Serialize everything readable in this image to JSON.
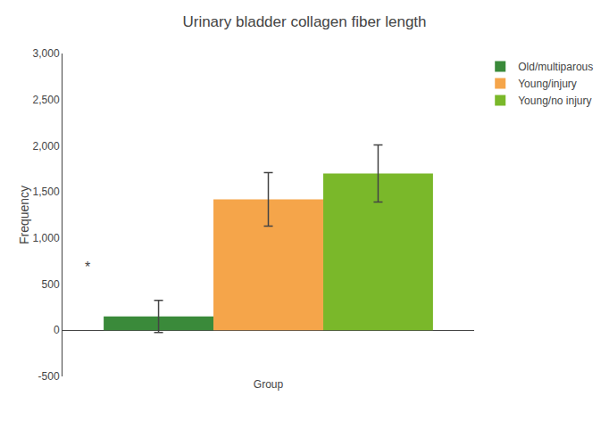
{
  "chart_data": {
    "type": "bar",
    "title": "Urinary bladder collagen fiber length",
    "ylabel": "Frequency",
    "categories": [
      "Group"
    ],
    "series": [
      {
        "name": "Old/multiparous",
        "color": "#3a8a3a",
        "values": [
          150
        ],
        "errors": [
          175
        ]
      },
      {
        "name": "Young/injury",
        "color": "#f5a54a",
        "values": [
          1420
        ],
        "errors": [
          290
        ]
      },
      {
        "name": "Young/no injury",
        "color": "#7ab82a",
        "values": [
          1700
        ],
        "errors": [
          310
        ]
      }
    ],
    "ylim": [
      -500,
      3000
    ],
    "yticks": [
      -500,
      0,
      500,
      {
        "value": 1000,
        "label": "1,000"
      },
      {
        "value": 1500,
        "label": "1,500"
      },
      {
        "value": 2000,
        "label": "2,000"
      },
      {
        "value": 2500,
        "label": "2,500"
      },
      {
        "value": 3000,
        "label": "3,000"
      }
    ],
    "annotations": [
      {
        "text": "*",
        "y": 580
      }
    ],
    "grid": false,
    "legend": "right"
  }
}
